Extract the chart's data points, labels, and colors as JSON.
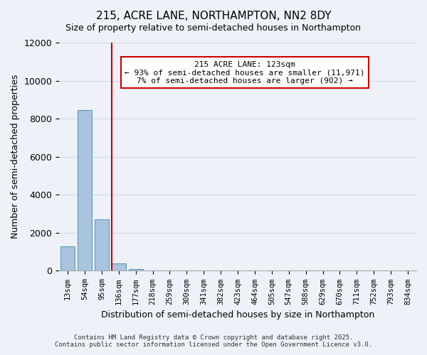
{
  "title_line1": "215, ACRE LANE, NORTHAMPTON, NN2 8DY",
  "title_line2": "Size of property relative to semi-detached houses in Northampton",
  "xlabel": "Distribution of semi-detached houses by size in Northampton",
  "ylabel": "Number of semi-detached properties",
  "bar_labels": [
    "13sqm",
    "54sqm",
    "95sqm",
    "136sqm",
    "177sqm",
    "218sqm",
    "259sqm",
    "300sqm",
    "341sqm",
    "382sqm",
    "423sqm",
    "464sqm",
    "505sqm",
    "547sqm",
    "588sqm",
    "629sqm",
    "670sqm",
    "711sqm",
    "752sqm",
    "793sqm",
    "834sqm"
  ],
  "bar_values": [
    1300,
    8450,
    2700,
    380,
    80,
    10,
    5,
    2,
    1,
    1,
    1,
    1,
    0,
    0,
    0,
    0,
    0,
    0,
    0,
    0,
    0
  ],
  "bar_color": "#aac4dd",
  "bar_edge_color": "#5a9abf",
  "grid_color": "#d0d8e8",
  "background_color": "#eef2f8",
  "vline_x": 3,
  "vline_color": "#cc0000",
  "annotation_title": "215 ACRE LANE: 123sqm",
  "annotation_line2": "← 93% of semi-detached houses are smaller (11,971)",
  "annotation_line3": "7% of semi-detached houses are larger (902) →",
  "annotation_box_color": "#ffffff",
  "annotation_box_edge_color": "#cc0000",
  "ylim": [
    0,
    12000
  ],
  "yticks": [
    0,
    2000,
    4000,
    6000,
    8000,
    10000,
    12000
  ],
  "footer_line1": "Contains HM Land Registry data © Crown copyright and database right 2025.",
  "footer_line2": "Contains public sector information licensed under the Open Government Licence v3.0."
}
